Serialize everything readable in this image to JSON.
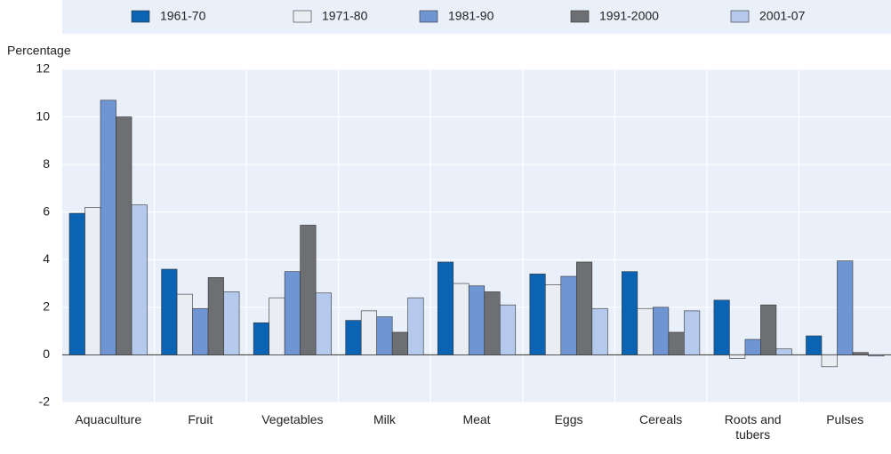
{
  "chart_data": {
    "type": "bar",
    "y_label": "Percentage",
    "categories": [
      "Aquaculture",
      "Fruit",
      "Vegetables",
      "Milk",
      "Meat",
      "Eggs",
      "Cereals",
      "Roots and tubers",
      "Pulses"
    ],
    "series": [
      {
        "name": "1961-70",
        "color": "#0b64b3",
        "values": [
          5.95,
          3.6,
          1.35,
          1.45,
          3.9,
          3.4,
          3.5,
          2.3,
          0.8
        ]
      },
      {
        "name": "1971-80",
        "color": "#eaeef2",
        "values": [
          6.2,
          2.55,
          2.4,
          1.85,
          3.0,
          2.95,
          1.95,
          -0.15,
          -0.5
        ]
      },
      {
        "name": "1981-90",
        "color": "#6f96d2",
        "values": [
          10.7,
          1.95,
          3.5,
          1.6,
          2.9,
          3.3,
          2.0,
          0.65,
          3.95
        ]
      },
      {
        "name": "1991-2000",
        "color": "#6d6f72",
        "values": [
          10.0,
          3.25,
          5.45,
          0.95,
          2.65,
          3.9,
          0.95,
          2.1,
          0.1
        ]
      },
      {
        "name": "2001-07",
        "color": "#b4c9eb",
        "values": [
          6.3,
          2.65,
          2.6,
          2.4,
          2.1,
          1.95,
          1.85,
          0.25,
          -0.05
        ]
      }
    ],
    "ylim": [
      -2,
      12
    ],
    "yticks": [
      -2,
      0,
      2,
      4,
      6,
      8,
      10,
      12
    ],
    "grid": true
  }
}
